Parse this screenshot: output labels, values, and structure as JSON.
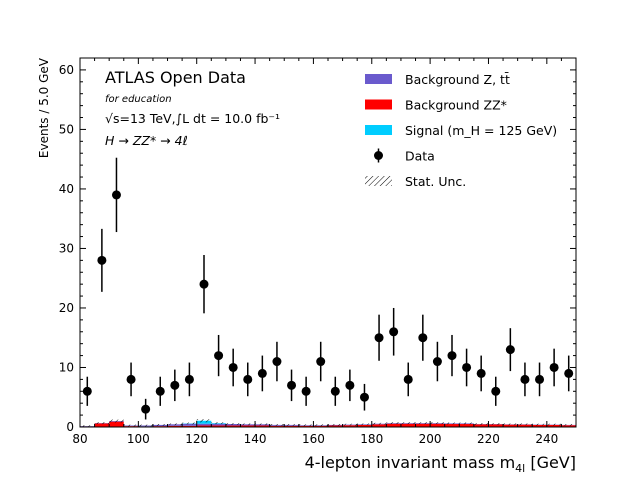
{
  "chart_data": {
    "type": "scatter",
    "xlabel": "4-lepton invariant mass m",
    "xlabel_sub": "4l",
    "xlabel_unit": " [GeV]",
    "ylabel": "Events / 5.0 GeV",
    "xlim": [
      80,
      250
    ],
    "ylim": [
      0,
      62
    ],
    "xticks": [
      80,
      100,
      120,
      140,
      160,
      180,
      200,
      220,
      240
    ],
    "yticks": [
      0,
      10,
      20,
      30,
      40,
      50,
      60
    ],
    "annotations": {
      "title": "ATLAS Open Data",
      "subtitle": "for education",
      "energy_lumi": "√s=13 TeV,∫L dt = 10.0 fb⁻¹",
      "process": "H → ZZ* → 4ℓ"
    },
    "legend": {
      "position": "top-right",
      "entries": [
        {
          "label": "Background Z, tt̄",
          "color": "#6a5acd",
          "kind": "patch"
        },
        {
          "label": "Background ZZ*",
          "color": "#ff0000",
          "kind": "patch"
        },
        {
          "label": "Signal (m_H = 125 GeV)",
          "color": "#00cdff",
          "kind": "patch"
        },
        {
          "label": "Data",
          "color": "#000000",
          "kind": "marker"
        },
        {
          "label": "Stat. Unc.",
          "color": "#000000",
          "kind": "hatch"
        }
      ]
    },
    "series": [
      {
        "name": "Data",
        "x": [
          82.5,
          87.5,
          92.5,
          97.5,
          102.5,
          107.5,
          112.5,
          117.5,
          122.5,
          127.5,
          132.5,
          137.5,
          142.5,
          147.5,
          152.5,
          157.5,
          162.5,
          167.5,
          172.5,
          177.5,
          182.5,
          187.5,
          192.5,
          197.5,
          202.5,
          207.5,
          212.5,
          217.5,
          222.5,
          227.5,
          232.5,
          237.5,
          242.5,
          247.5
        ],
        "y": [
          6,
          28,
          39,
          8,
          3,
          6,
          7,
          8,
          24,
          12,
          10,
          8,
          9,
          11,
          7,
          6,
          11,
          6,
          7,
          5,
          15,
          16,
          8,
          15,
          11,
          12,
          10,
          9,
          6,
          13,
          8,
          8,
          10,
          9
        ]
      },
      {
        "name": "Background ZZ*",
        "bins_lo": [
          80,
          85,
          90,
          95,
          100,
          105,
          110,
          115,
          120,
          125,
          130,
          135,
          140,
          145,
          150,
          155,
          160,
          165,
          170,
          175,
          180,
          185,
          190,
          195,
          200,
          205,
          210,
          215,
          220,
          225,
          230,
          235,
          240,
          245
        ],
        "values": [
          0.1,
          0.6,
          0.9,
          0.15,
          0.1,
          0.15,
          0.2,
          0.2,
          0.25,
          0.25,
          0.25,
          0.25,
          0.25,
          0.2,
          0.2,
          0.2,
          0.2,
          0.25,
          0.3,
          0.35,
          0.45,
          0.55,
          0.55,
          0.55,
          0.55,
          0.5,
          0.5,
          0.45,
          0.45,
          0.4,
          0.4,
          0.35,
          0.35,
          0.3
        ]
      },
      {
        "name": "Background Z, tt̄",
        "bins_lo": [
          80,
          85,
          90,
          95,
          100,
          105,
          110,
          115,
          120,
          125,
          130,
          135,
          140,
          145,
          150,
          155,
          160,
          165,
          170,
          175,
          180,
          185,
          190,
          195,
          200,
          205,
          210,
          215,
          220,
          225,
          230,
          235,
          240,
          245
        ],
        "values": [
          0.05,
          0.05,
          0.1,
          0.1,
          0.15,
          0.2,
          0.25,
          0.35,
          0.3,
          0.3,
          0.25,
          0.2,
          0.2,
          0.15,
          0.15,
          0.1,
          0.1,
          0.1,
          0.1,
          0.1,
          0.1,
          0.1,
          0.1,
          0.1,
          0.1,
          0.1,
          0.1,
          0.05,
          0.05,
          0.05,
          0.05,
          0.05,
          0.05,
          0.05
        ]
      },
      {
        "name": "Signal (m_H = 125 GeV)",
        "bins_lo": [
          115,
          120,
          125
        ],
        "values": [
          0.05,
          0.5,
          0.1
        ]
      }
    ]
  }
}
